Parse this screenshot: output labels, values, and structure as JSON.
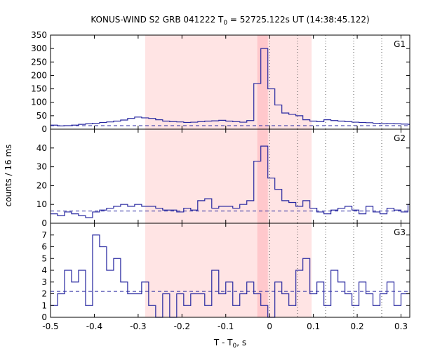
{
  "title": {
    "prefix": "KONUS-WIND S2 GRB 041222 T",
    "sub": "0",
    "suffix": " = 52725.122s UT (14:38:45.122)"
  },
  "chart_data": {
    "type": "line",
    "step": true,
    "x_axis": {
      "label_prefix": "T - T",
      "label_sub": "0",
      "label_suffix": ", s",
      "range": [
        -0.5,
        0.32
      ],
      "ticks": [
        -0.5,
        -0.4,
        -0.3,
        -0.2,
        -0.1,
        0,
        0.1,
        0.2,
        0.3
      ],
      "tick_labels": [
        "-0.5",
        "-0.4",
        "-0.3",
        "-0.2",
        "-0.1",
        "0",
        "0.1",
        "0.2",
        "0.3"
      ]
    },
    "y_axis_label": "counts / 16 ms",
    "bin_width": 0.016,
    "bin_start": -0.5,
    "shaded_regions": [
      {
        "from": -0.284,
        "to": 0.096,
        "color": "#ffe4e4"
      },
      {
        "from": -0.028,
        "to": -0.004,
        "color": "#ffc8cc"
      }
    ],
    "vertical_lines": [
      0,
      0.064,
      0.128,
      0.192,
      0.256
    ],
    "line_color": "#2828a0",
    "panels": [
      {
        "name": "G1",
        "ylim": [
          0,
          350
        ],
        "yticks": [
          0,
          50,
          100,
          150,
          200,
          250,
          300,
          350
        ],
        "background": 13,
        "values": [
          15,
          12,
          13,
          15,
          18,
          20,
          22,
          25,
          27,
          30,
          34,
          40,
          45,
          42,
          40,
          35,
          30,
          28,
          27,
          25,
          26,
          28,
          30,
          31,
          33,
          30,
          28,
          26,
          32,
          170,
          300,
          150,
          90,
          60,
          55,
          50,
          35,
          30,
          28,
          35,
          32,
          30,
          28,
          26,
          25,
          24,
          22,
          20,
          21,
          20,
          19,
          18
        ]
      },
      {
        "name": "G2",
        "ylim": [
          0,
          50
        ],
        "yticks": [
          0,
          10,
          20,
          30,
          40
        ],
        "background": 6.5,
        "values": [
          5,
          4,
          6,
          5,
          4,
          3,
          6,
          7,
          8,
          9,
          10,
          9,
          10,
          9,
          9,
          8,
          7,
          7,
          6,
          8,
          7,
          12,
          13,
          8,
          9,
          9,
          8,
          10,
          12,
          33,
          41,
          24,
          18,
          12,
          11,
          9,
          12,
          8,
          6,
          5,
          7,
          8,
          9,
          7,
          5,
          9,
          6,
          5,
          8,
          7,
          6,
          10
        ]
      },
      {
        "name": "G3",
        "ylim": [
          0,
          8
        ],
        "yticks": [
          0,
          1,
          2,
          3,
          4,
          5,
          6,
          7
        ],
        "background": 2.2,
        "values": [
          1,
          2,
          4,
          3,
          4,
          1,
          7,
          6,
          4,
          5,
          3,
          2,
          2,
          3,
          1,
          0,
          2,
          0,
          2,
          1,
          2,
          2,
          1,
          4,
          2,
          3,
          1,
          2,
          3,
          2,
          1,
          0,
          3,
          2,
          1,
          4,
          5,
          2,
          3,
          1,
          4,
          3,
          2,
          1,
          3,
          2,
          1,
          2,
          3,
          1,
          2,
          2
        ]
      }
    ]
  }
}
